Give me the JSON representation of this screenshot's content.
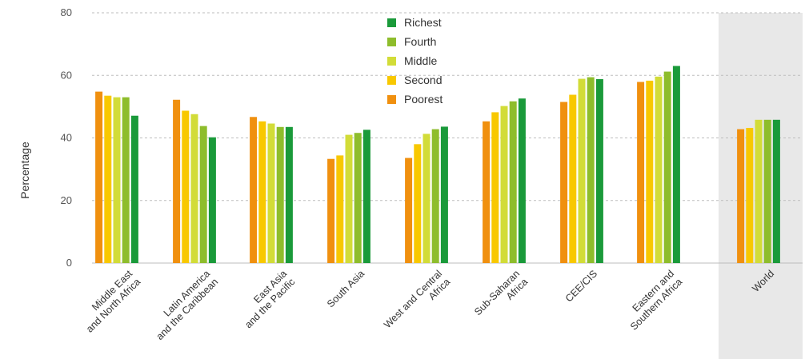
{
  "chart_data": {
    "type": "bar",
    "ylabel": "Percentage",
    "ylim": [
      0,
      80
    ],
    "yticks": [
      "0",
      "20",
      "40",
      "60",
      "80"
    ],
    "grid": true,
    "legend_position": "top-center",
    "categories": [
      [
        "Middle East",
        "and North Africa"
      ],
      [
        "Latin America",
        "and the Caribbean"
      ],
      [
        "East Asia",
        "and the Pacific"
      ],
      [
        "South Asia"
      ],
      [
        "West and Central",
        "Africa"
      ],
      [
        "Sub-Saharan",
        "Africa"
      ],
      [
        "CEE/CIS"
      ],
      [
        "Eastern and",
        "Southern Africa"
      ],
      [
        "World"
      ]
    ],
    "highlighted_category": "World",
    "highlight_color": "#e8e8e8",
    "series": [
      {
        "name": "Poorest",
        "color": "#f0900f",
        "values": [
          54.8,
          52.2,
          46.7,
          33.3,
          33.6,
          45.3,
          51.5,
          57.9,
          42.8
        ]
      },
      {
        "name": "Second",
        "color": "#f8c800",
        "values": [
          53.5,
          48.7,
          45.3,
          34.4,
          38.0,
          48.2,
          53.8,
          58.3,
          43.2
        ]
      },
      {
        "name": "Middle",
        "color": "#d2dc38",
        "values": [
          53.0,
          47.6,
          44.6,
          41.0,
          41.3,
          50.2,
          58.9,
          59.6,
          45.8
        ]
      },
      {
        "name": "Fourth",
        "color": "#8ebd2c",
        "values": [
          53.0,
          43.8,
          43.5,
          41.6,
          42.8,
          51.7,
          59.4,
          61.2,
          45.8
        ]
      },
      {
        "name": "Richest",
        "color": "#1a9a3a",
        "values": [
          47.1,
          40.2,
          43.5,
          42.6,
          43.6,
          52.6,
          58.8,
          63.0,
          45.8
        ]
      }
    ],
    "legend_order": [
      "Richest",
      "Fourth",
      "Middle",
      "Second",
      "Poorest"
    ]
  }
}
